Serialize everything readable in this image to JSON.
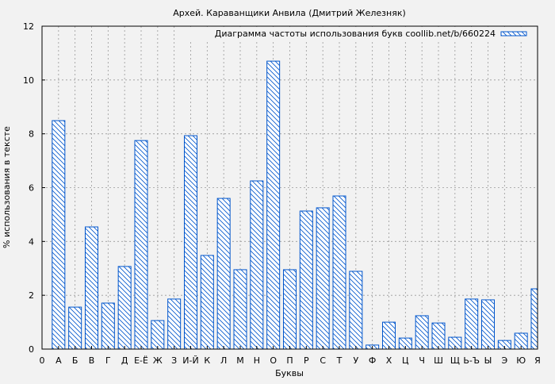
{
  "chart_data": {
    "type": "bar",
    "title": "Архей. Караванщики Анвила (Дмитрий Железняк)",
    "xlabel": "Буквы",
    "ylabel": "% использования в тексте",
    "ylim": [
      0,
      12
    ],
    "yticks": [
      "0",
      "2",
      "4",
      "6",
      "8",
      "10",
      "12"
    ],
    "grid": true,
    "legend_position": "top-right",
    "colors": {
      "bar_edge": "#0055cc",
      "background": "#f2f2f2",
      "grid": "#999999"
    },
    "bar_fill": "hatched",
    "categories": [
      "0",
      "А",
      "Б",
      "В",
      "Г",
      "Д",
      "Е-Ё",
      "Ж",
      "З",
      "И-Й",
      "К",
      "Л",
      "М",
      "Н",
      "О",
      "П",
      "Р",
      "С",
      "Т",
      "У",
      "Ф",
      "Х",
      "Ц",
      "Ч",
      "Ш",
      "Щ",
      "Ь-Ъ",
      "Ы",
      "Э",
      "Ю",
      "Я"
    ],
    "series": [
      {
        "name": "Диаграмма частоты использования букв coollib.net/b/660224",
        "values": [
          null,
          8.49,
          1.56,
          4.54,
          1.71,
          3.07,
          7.75,
          1.06,
          1.86,
          7.93,
          3.48,
          5.6,
          2.95,
          6.25,
          10.7,
          2.95,
          5.13,
          5.25,
          5.69,
          2.89,
          0.15,
          1.0,
          0.41,
          1.24,
          0.97,
          0.44,
          1.86,
          1.83,
          0.32,
          0.59,
          2.24
        ]
      }
    ]
  }
}
